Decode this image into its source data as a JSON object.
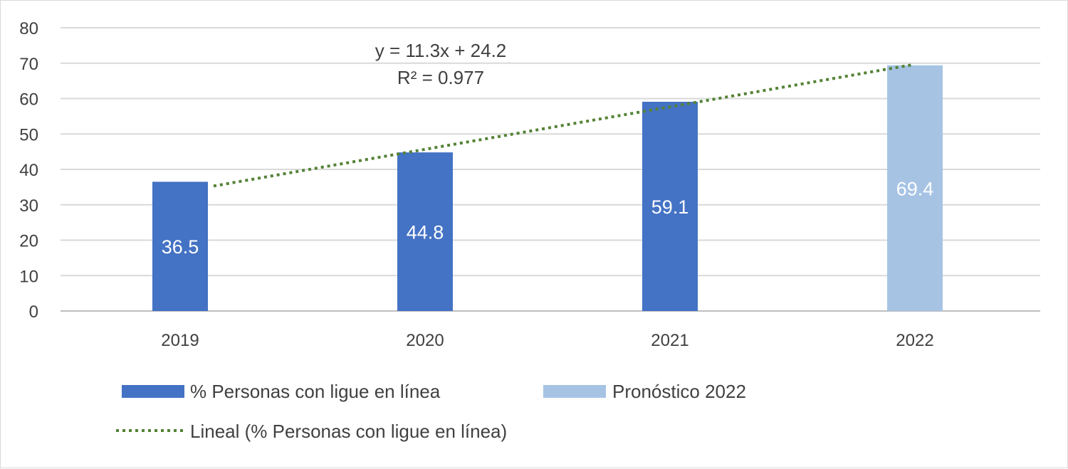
{
  "chart_data": {
    "type": "bar",
    "categories": [
      "2019",
      "2020",
      "2021",
      "2022"
    ],
    "series": [
      {
        "name": "% Personas con ligue en línea",
        "color": "#4472C4",
        "values": [
          36.5,
          44.8,
          59.1,
          null
        ]
      },
      {
        "name": "Pronóstico 2022",
        "color": "#A6C3E4",
        "values": [
          null,
          null,
          null,
          69.4
        ]
      }
    ],
    "trendline": {
      "name": "Lineal (% Personas con ligue en línea)",
      "type": "linear",
      "style": "dotted",
      "color": "#548235",
      "slope": 11.3,
      "intercept": 24.2,
      "equation": "y = 11.3x + 24.2",
      "r_squared": "R² = 0.977"
    },
    "ylim": [
      0,
      80
    ],
    "yticks": [
      0,
      10,
      20,
      30,
      40,
      50,
      60,
      70,
      80
    ],
    "grid": true,
    "legend": "bottom",
    "data_labels": [
      "36.5",
      "44.8",
      "59.1",
      "69.4"
    ]
  }
}
